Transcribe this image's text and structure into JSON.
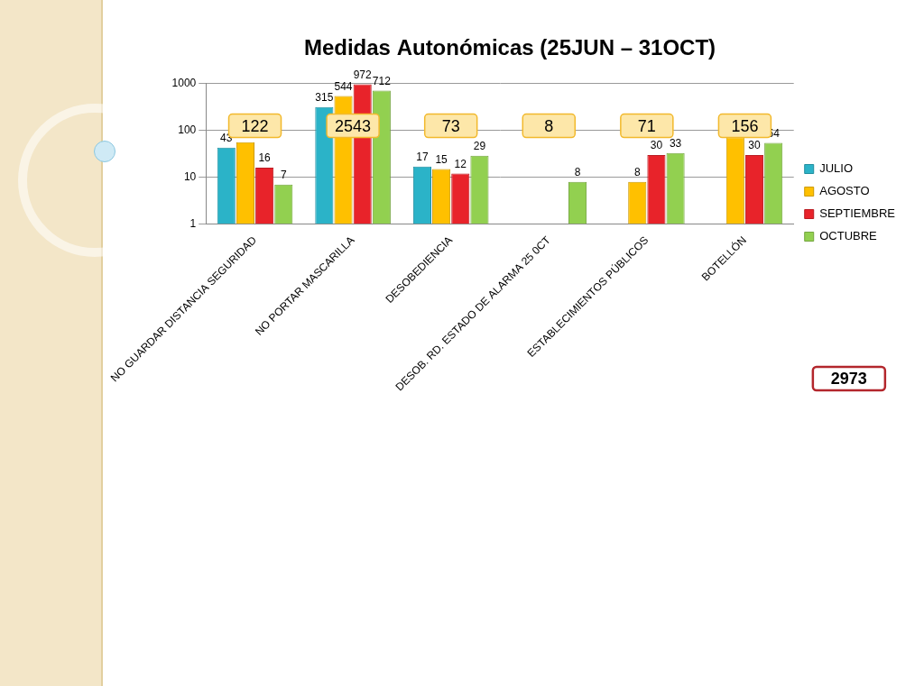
{
  "chart_data": {
    "type": "bar",
    "title": "Medidas Autonómicas (25JUN – 31OCT)",
    "categories": [
      "NO GUARDAR DISTANCIA SEGURIDAD",
      "NO PORTAR MASCARILLA",
      "DESOBEDIENCIA",
      "DESOB. RD. ESTADO DE ALARMA 25 0CT",
      "ESTABLECIMIENTOS PÚBLICOS",
      "BOTELLÓN"
    ],
    "series": [
      {
        "name": "JULIO",
        "color": "#2bb3c8",
        "values": [
          43,
          315,
          17,
          null,
          null,
          null
        ]
      },
      {
        "name": "AGOSTO",
        "color": "#ffc000",
        "values": [
          56,
          544,
          15,
          null,
          8,
          72
        ]
      },
      {
        "name": "SEPTIEMBRE",
        "color": "#e8232a",
        "values": [
          16,
          972,
          12,
          null,
          30,
          30
        ]
      },
      {
        "name": "OCTUBRE",
        "color": "#92d050",
        "values": [
          7,
          712,
          29,
          8,
          33,
          54
        ]
      }
    ],
    "totals": [
      122,
      2543,
      73,
      8,
      71,
      156
    ],
    "grand_total": 2973,
    "log": "y",
    "ylim": [
      1,
      1000
    ],
    "yticks": [
      1,
      10,
      100,
      1000
    ],
    "grid": true,
    "legend": "right",
    "data_labels": true
  }
}
